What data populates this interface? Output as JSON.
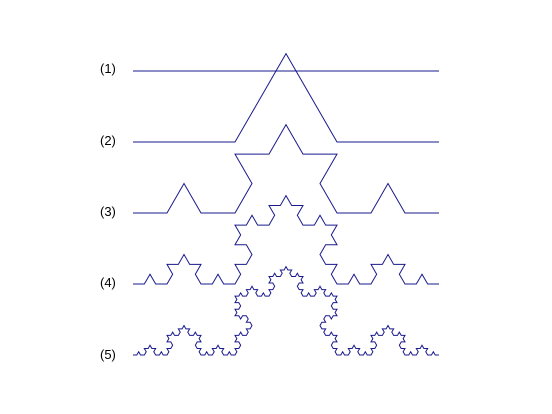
{
  "figure": {
    "line_color": "#1a1a8c",
    "text_color": "#000000",
    "stages": [
      {
        "label": "(1)",
        "iterations": 0
      },
      {
        "label": "(2)",
        "iterations": 1
      },
      {
        "label": "(3)",
        "iterations": 2
      },
      {
        "label": "(4)",
        "iterations": 3
      },
      {
        "label": "(5)",
        "iterations": 4
      }
    ]
  }
}
